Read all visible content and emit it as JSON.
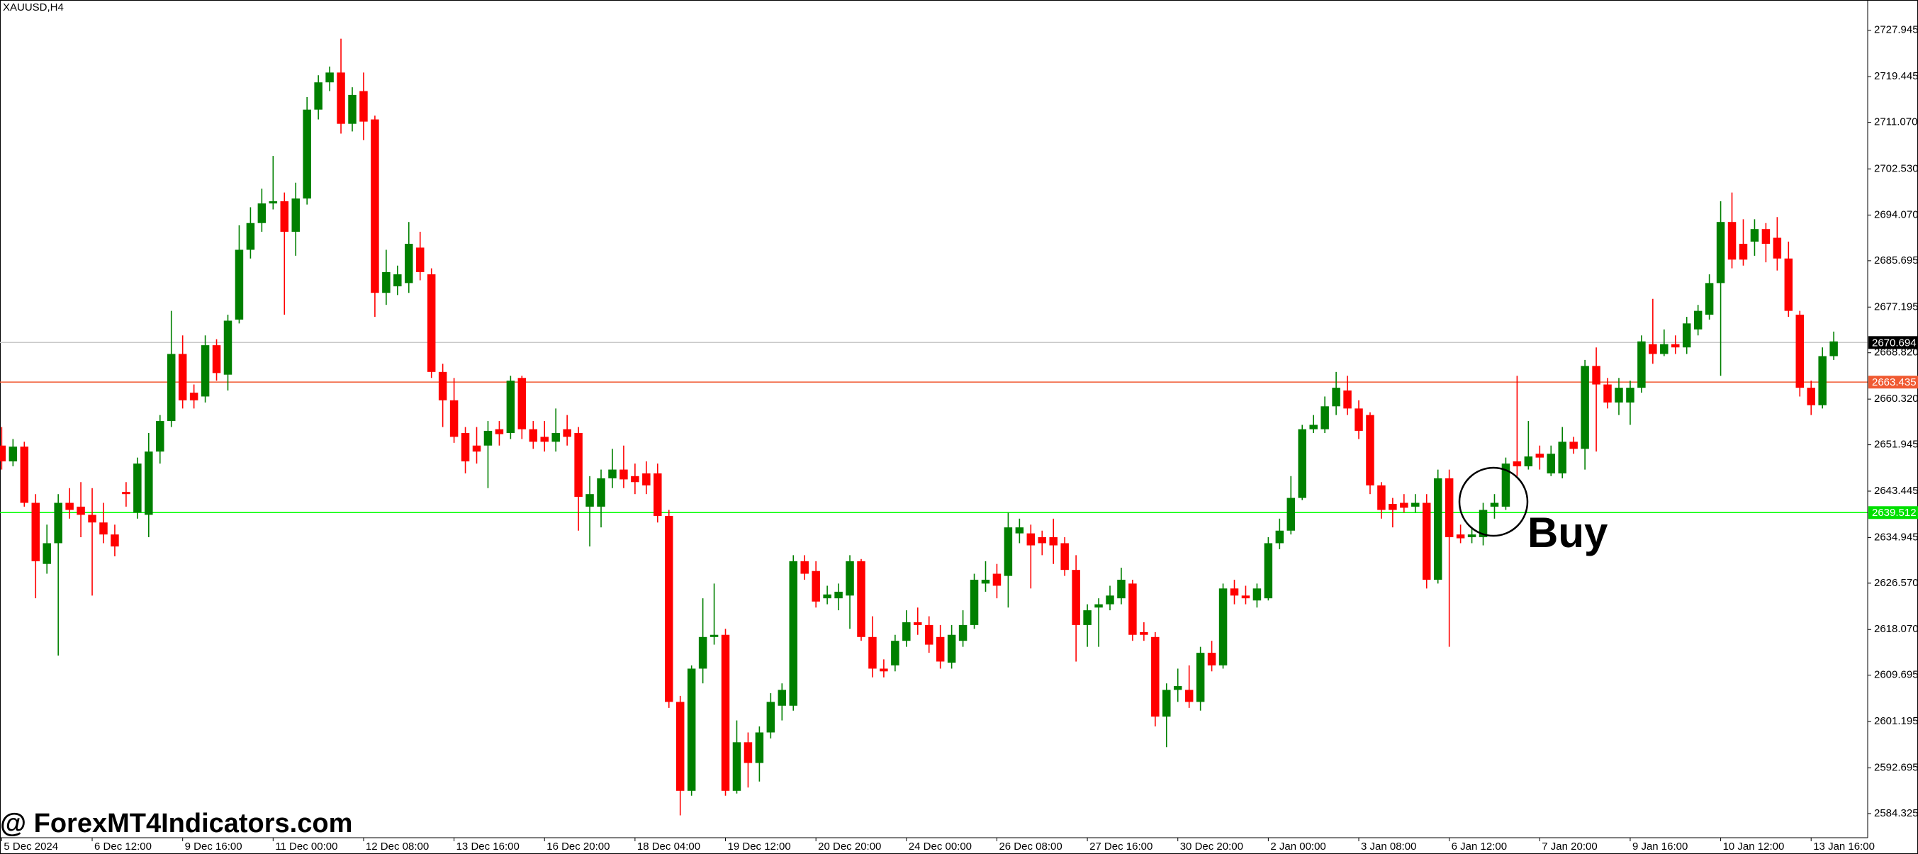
{
  "chart_data": {
    "type": "candlestick",
    "title": "XAUUSD,H4",
    "annotation": "Buy",
    "watermark": "@ ForexMT4Indicators.com",
    "up_color": "#008000",
    "down_color": "#ff0000",
    "grid": false,
    "xlim": [
      -0.15,
      165
    ],
    "ylim": [
      2579.9,
      2733.5
    ],
    "yticks": [
      2727.945,
      2719.445,
      {
        "value": 2711.07,
        "label": "2711.070"
      },
      {
        "value": 2702.53,
        "label": "2702.530"
      },
      {
        "value": 2694.07,
        "label": "2694.070"
      },
      2685.695,
      2677.195,
      {
        "value": 2668.82,
        "label": "2668.820"
      },
      {
        "value": 2660.32,
        "label": "2660.320"
      },
      2651.945,
      2643.445,
      2634.945,
      {
        "value": 2626.57,
        "label": "2626.570"
      },
      {
        "value": 2618.07,
        "label": "2618.070"
      },
      2609.695,
      2601.195,
      2592.695,
      2584.325
    ],
    "xticks": [
      {
        "value": 0,
        "label": "5 Dec 2024"
      },
      {
        "value": 8,
        "label": "6 Dec 12:00"
      },
      {
        "value": 16,
        "label": "9 Dec 16:00"
      },
      {
        "value": 24,
        "label": "11 Dec 00:00"
      },
      {
        "value": 32,
        "label": "12 Dec 08:00"
      },
      {
        "value": 40,
        "label": "13 Dec 16:00"
      },
      {
        "value": 48,
        "label": "16 Dec 20:00"
      },
      {
        "value": 56,
        "label": "18 Dec 04:00"
      },
      {
        "value": 64,
        "label": "19 Dec 12:00"
      },
      {
        "value": 72,
        "label": "20 Dec 20:00"
      },
      {
        "value": 80,
        "label": "24 Dec 00:00"
      },
      {
        "value": 88,
        "label": "26 Dec 08:00"
      },
      {
        "value": 96,
        "label": "27 Dec 16:00"
      },
      {
        "value": 104,
        "label": "30 Dec 20:00"
      },
      {
        "value": 112,
        "label": "2 Jan 00:00"
      },
      {
        "value": 120,
        "label": "3 Jan 08:00"
      },
      {
        "value": 128,
        "label": "6 Jan 12:00"
      },
      {
        "value": 136,
        "label": "7 Jan 20:00"
      },
      {
        "value": 144,
        "label": "9 Jan 16:00"
      },
      {
        "value": 152,
        "label": "10 Jan 12:00"
      },
      {
        "value": 160,
        "label": "13 Jan 16:00"
      }
    ],
    "hlines": [
      {
        "value": 2670.694,
        "color": "#c8c8c8",
        "label_color": "#000000"
      },
      {
        "value": 2663.435,
        "color": "#f05a32",
        "label_color": "#f05a32"
      },
      {
        "value": 2639.512,
        "color": "#00ff00",
        "label_color": "#00e000"
      }
    ],
    "open": [
      2651.8,
      2648.9,
      2651.6,
      2641.3,
      2630.1,
      2633.9,
      2641.3,
      2640.6,
      2639.1,
      2637.7,
      2635.5,
      2643.3,
      2639.5,
      2639.1,
      2650.7,
      2656.3,
      2668.6,
      2661.5,
      2660.8,
      2670.2,
      2664.8,
      2674.9,
      2687.7,
      2692.6,
      2696.2,
      2696.6,
      2691.0,
      2697.1,
      2713.4,
      2718.4,
      2720.2,
      2710.8,
      2716.8,
      2711.6,
      2679.8,
      2681.0,
      2681.6,
      2688.1,
      2683.2,
      2665.3,
      2660.1,
      2654.1,
      2651.8,
      2651.8,
      2654.8,
      2654.1,
      2664.2,
      2654.8,
      2653.4,
      2652.5,
      2654.8,
      2654.1,
      2640.6,
      2640.6,
      2645.8,
      2647.4,
      2646.2,
      2646.7,
      2646.7,
      2638.9,
      2604.8,
      2588.5,
      2610.9,
      2616.7,
      2617.1,
      2588.5,
      2597.4,
      2593.6,
      2599.2,
      2604.1,
      2604.1,
      2630.6,
      2628.8,
      2623.8,
      2623.8,
      2624.3,
      2630.6,
      2616.7,
      2610.9,
      2611.5,
      2616.0,
      2619.4,
      2618.9,
      2616.7,
      2612.0,
      2616.0,
      2618.9,
      2626.5,
      2628.3,
      2627.9,
      2635.7,
      2635.7,
      2635.0,
      2635.0,
      2633.9,
      2629.0,
      2618.9,
      2622.1,
      2622.7,
      2623.8,
      2626.5,
      2617.6,
      2616.7,
      2602.1,
      2607.0,
      2607.0,
      2604.8,
      2613.8,
      2611.5,
      2625.6,
      2624.3,
      2623.4,
      2623.8,
      2633.9,
      2636.2,
      2642.2,
      2654.8,
      2654.8,
      2659.0,
      2661.9,
      2658.6,
      2657.4,
      2644.5,
      2641.1,
      2641.3,
      2640.6,
      2641.3,
      2627.2,
      2645.8,
      2635.5,
      2635.0,
      2635.0,
      2640.6,
      2640.6,
      2648.9,
      2648.0,
      2650.3,
      2646.7,
      2646.7,
      2652.5,
      2651.2,
      2666.4,
      2663.0,
      2659.7,
      2659.7,
      2662.4,
      2670.4,
      2668.6,
      2670.4,
      2669.8,
      2673.1,
      2675.8,
      2681.6,
      2692.8,
      2688.8,
      2689.2,
      2691.5,
      2689.9,
      2686.1,
      2675.8,
      2662.4,
      2659.2,
      2668.2
    ],
    "high": [
      2655.2,
      2653.0,
      2652.5,
      2642.9,
      2637.3,
      2642.9,
      2644.0,
      2645.1,
      2644.0,
      2641.3,
      2637.3,
      2645.1,
      2649.6,
      2654.1,
      2657.4,
      2676.5,
      2672.0,
      2663.0,
      2672.0,
      2671.3,
      2675.8,
      2692.2,
      2695.5,
      2698.9,
      2704.9,
      2698.2,
      2700.0,
      2715.7,
      2719.7,
      2721.3,
      2726.4,
      2717.5,
      2720.2,
      2712.3,
      2687.7,
      2684.8,
      2692.8,
      2691.0,
      2684.3,
      2666.8,
      2664.2,
      2655.2,
      2655.2,
      2656.3,
      2656.3,
      2664.6,
      2664.6,
      2656.3,
      2656.3,
      2658.6,
      2657.4,
      2655.2,
      2646.2,
      2647.4,
      2651.2,
      2651.8,
      2648.5,
      2648.9,
      2648.5,
      2640.0,
      2605.9,
      2611.5,
      2623.8,
      2626.5,
      2618.2,
      2601.4,
      2599.2,
      2600.3,
      2606.4,
      2608.2,
      2631.7,
      2631.7,
      2630.6,
      2626.1,
      2626.5,
      2631.7,
      2631.0,
      2620.5,
      2612.6,
      2617.1,
      2621.6,
      2622.1,
      2620.5,
      2618.9,
      2618.9,
      2621.6,
      2628.3,
      2630.6,
      2630.1,
      2639.5,
      2638.4,
      2637.3,
      2636.2,
      2638.4,
      2635.0,
      2631.7,
      2622.7,
      2623.8,
      2626.1,
      2629.4,
      2627.2,
      2619.4,
      2617.6,
      2608.2,
      2610.9,
      2611.5,
      2614.9,
      2616.0,
      2626.5,
      2627.2,
      2626.1,
      2626.5,
      2635.0,
      2638.4,
      2646.2,
      2655.6,
      2657.4,
      2660.8,
      2665.3,
      2664.6,
      2660.1,
      2657.9,
      2645.1,
      2642.2,
      2642.9,
      2642.9,
      2642.9,
      2647.4,
      2647.4,
      2637.3,
      2636.8,
      2641.3,
      2642.9,
      2649.6,
      2664.6,
      2656.3,
      2651.8,
      2651.8,
      2655.2,
      2653.4,
      2667.5,
      2669.8,
      2664.2,
      2664.2,
      2663.7,
      2672.0,
      2678.7,
      2673.1,
      2672.0,
      2675.4,
      2677.6,
      2683.2,
      2696.6,
      2698.2,
      2693.3,
      2693.3,
      2692.6,
      2693.7,
      2689.2,
      2676.5,
      2663.7,
      2669.8,
      2672.7
    ],
    "low": [
      2647.4,
      2648.0,
      2640.6,
      2623.8,
      2628.3,
      2613.3,
      2638.4,
      2635.0,
      2624.3,
      2633.9,
      2631.5,
      2640.6,
      2638.4,
      2635.0,
      2648.5,
      2655.2,
      2658.6,
      2658.6,
      2659.7,
      2663.7,
      2661.9,
      2674.2,
      2686.1,
      2691.0,
      2695.1,
      2675.8,
      2686.6,
      2696.0,
      2711.6,
      2716.8,
      2709.0,
      2709.4,
      2707.8,
      2675.4,
      2677.6,
      2679.4,
      2679.8,
      2682.1,
      2664.2,
      2655.2,
      2652.3,
      2646.7,
      2648.5,
      2644.0,
      2651.8,
      2653.0,
      2653.0,
      2651.2,
      2650.7,
      2650.7,
      2651.8,
      2636.2,
      2633.3,
      2636.8,
      2644.0,
      2644.0,
      2642.9,
      2642.9,
      2637.7,
      2603.7,
      2584.0,
      2587.6,
      2608.2,
      2615.3,
      2587.6,
      2588.0,
      2589.1,
      2590.2,
      2598.1,
      2601.4,
      2603.2,
      2627.2,
      2622.1,
      2622.7,
      2621.6,
      2618.2,
      2616.0,
      2609.3,
      2609.3,
      2610.4,
      2614.9,
      2617.1,
      2613.8,
      2610.9,
      2610.9,
      2614.9,
      2618.2,
      2625.0,
      2623.8,
      2622.1,
      2633.9,
      2625.6,
      2631.7,
      2630.1,
      2627.9,
      2612.2,
      2614.9,
      2614.9,
      2621.6,
      2622.7,
      2616.0,
      2616.0,
      2600.3,
      2596.5,
      2604.8,
      2603.7,
      2603.2,
      2610.4,
      2610.9,
      2622.7,
      2622.7,
      2622.1,
      2623.4,
      2632.8,
      2635.5,
      2641.8,
      2654.1,
      2654.1,
      2657.4,
      2657.4,
      2653.0,
      2642.9,
      2638.4,
      2636.8,
      2639.5,
      2639.5,
      2625.6,
      2626.5,
      2614.9,
      2633.9,
      2633.9,
      2633.5,
      2638.4,
      2640.0,
      2646.2,
      2647.4,
      2647.4,
      2646.2,
      2645.8,
      2650.3,
      2647.4,
      2650.7,
      2658.6,
      2657.4,
      2655.6,
      2661.5,
      2666.8,
      2668.2,
      2668.6,
      2668.6,
      2672.0,
      2674.9,
      2664.6,
      2684.3,
      2684.8,
      2686.6,
      2685.4,
      2683.9,
      2675.4,
      2660.8,
      2657.4,
      2658.6,
      2667.5
    ],
    "close": [
      2648.9,
      2651.6,
      2641.3,
      2630.6,
      2633.9,
      2641.3,
      2640.0,
      2639.1,
      2637.7,
      2635.5,
      2633.3,
      2642.9,
      2648.5,
      2650.7,
      2656.3,
      2668.6,
      2660.1,
      2660.1,
      2670.2,
      2665.1,
      2674.7,
      2687.7,
      2692.6,
      2696.2,
      2696.6,
      2691.0,
      2697.1,
      2713.4,
      2718.4,
      2720.2,
      2710.8,
      2716.1,
      2711.2,
      2679.8,
      2683.6,
      2683.2,
      2688.8,
      2683.6,
      2665.3,
      2660.1,
      2653.4,
      2648.9,
      2650.7,
      2654.5,
      2653.9,
      2663.7,
      2654.8,
      2652.5,
      2652.5,
      2654.1,
      2653.4,
      2642.4,
      2642.9,
      2645.8,
      2647.4,
      2645.6,
      2645.1,
      2644.5,
      2638.9,
      2604.8,
      2588.5,
      2610.9,
      2616.7,
      2617.1,
      2588.5,
      2597.4,
      2593.6,
      2599.2,
      2604.8,
      2607.0,
      2630.6,
      2628.3,
      2623.2,
      2624.5,
      2625.0,
      2630.6,
      2616.7,
      2610.9,
      2610.4,
      2616.0,
      2619.4,
      2618.9,
      2615.3,
      2612.2,
      2617.1,
      2618.9,
      2627.2,
      2627.2,
      2626.1,
      2636.8,
      2636.8,
      2633.5,
      2633.9,
      2633.5,
      2629.0,
      2618.9,
      2621.6,
      2622.7,
      2624.3,
      2627.2,
      2617.1,
      2617.1,
      2602.1,
      2607.0,
      2607.7,
      2604.8,
      2613.8,
      2611.5,
      2625.6,
      2624.3,
      2623.8,
      2625.6,
      2633.9,
      2636.2,
      2642.2,
      2654.8,
      2655.6,
      2659.0,
      2662.4,
      2658.6,
      2654.5,
      2644.5,
      2640.0,
      2640.0,
      2640.4,
      2641.3,
      2627.2,
      2645.8,
      2635.0,
      2634.8,
      2635.5,
      2640.0,
      2641.3,
      2648.5,
      2648.0,
      2649.8,
      2649.6,
      2650.3,
      2652.5,
      2651.2,
      2666.4,
      2663.0,
      2659.7,
      2662.4,
      2662.4,
      2670.9,
      2668.6,
      2670.4,
      2669.8,
      2674.2,
      2676.5,
      2681.6,
      2692.8,
      2685.9,
      2685.9,
      2691.5,
      2688.8,
      2686.1,
      2676.5,
      2662.4,
      2659.2,
      2668.2,
      2670.9
    ]
  }
}
